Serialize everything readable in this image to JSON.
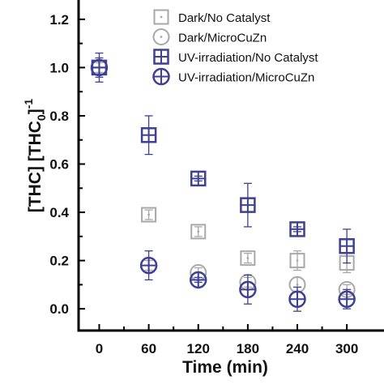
{
  "chart_data": {
    "type": "scatter",
    "xlabel": "Time (min)",
    "ylabel": "[THC] [THC",
    "ylabel_sub": "0",
    "ylabel_tail": "]",
    "ylabel_sup": "-1",
    "xlim": [
      -25,
      345
    ],
    "ylim": [
      -0.09,
      1.28
    ],
    "x_ticks": [
      0,
      60,
      120,
      180,
      240,
      300
    ],
    "x_tick_labels": [
      "0",
      "60",
      "120",
      "180",
      "240",
      "300"
    ],
    "y_ticks": [
      0.0,
      0.2,
      0.4,
      0.6,
      0.8,
      1.0,
      1.2
    ],
    "y_tick_labels": [
      "0.0",
      "0.2",
      "0.4",
      "0.6",
      "0.8",
      "1.0",
      "1.2"
    ],
    "grid": false,
    "legend_position": "top-right",
    "series": [
      {
        "name": "Dark/No Catalyst",
        "marker": "square",
        "color": "#a8a8a8",
        "x": [
          0,
          60,
          120,
          180,
          240,
          300
        ],
        "y": [
          1.0,
          0.39,
          0.32,
          0.21,
          0.2,
          0.19
        ],
        "err": [
          0.03,
          0.02,
          0.02,
          0.02,
          0.04,
          0.04
        ]
      },
      {
        "name": "Dark/MicroCuZn",
        "marker": "circle",
        "color": "#a8a8a8",
        "x": [
          0,
          60,
          120,
          180,
          240,
          300
        ],
        "y": [
          1.0,
          0.18,
          0.15,
          0.11,
          0.1,
          0.08
        ],
        "err": [
          0.02,
          0.02,
          0.02,
          0.02,
          0.03,
          0.02
        ]
      },
      {
        "name": "UV-irradiation/No Catalyst",
        "marker": "square-cross",
        "color": "#3f3f93",
        "x": [
          0,
          60,
          120,
          180,
          240,
          300
        ],
        "y": [
          1.0,
          0.72,
          0.54,
          0.43,
          0.33,
          0.26
        ],
        "err": [
          0.04,
          0.08,
          0.01,
          0.09,
          0.01,
          0.07
        ]
      },
      {
        "name": "UV-irradiation/MicroCuZn",
        "marker": "circle-cross",
        "color": "#3f3f93",
        "x": [
          0,
          60,
          120,
          180,
          240,
          300
        ],
        "y": [
          1.0,
          0.18,
          0.12,
          0.08,
          0.04,
          0.04
        ],
        "err": [
          0.06,
          0.06,
          0.01,
          0.06,
          0.05,
          0.04
        ]
      }
    ]
  }
}
